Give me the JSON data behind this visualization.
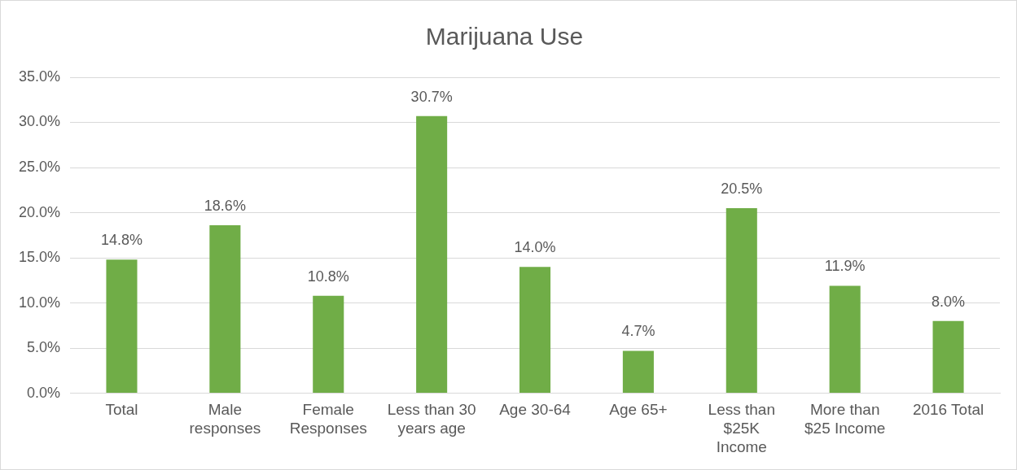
{
  "chart_data": {
    "type": "bar",
    "title": "Marijuana Use",
    "categories": [
      "Total",
      "Male\nresponses",
      "Female\nResponses",
      "Less than 30\nyears age",
      "Age 30-64",
      "Age 65+",
      "Less than\n$25K\nIncome",
      "More than\n$25 Income",
      "2016 Total"
    ],
    "values": [
      14.8,
      18.6,
      10.8,
      30.7,
      14.0,
      4.7,
      20.5,
      11.9,
      8.0
    ],
    "value_labels": [
      "14.8%",
      "18.6%",
      "10.8%",
      "30.7%",
      "14.0%",
      "4.7%",
      "20.5%",
      "11.9%",
      "8.0%"
    ],
    "color": "#70ad47",
    "ylim": [
      0,
      35
    ],
    "yticks": [
      {
        "value": 0,
        "label": "0.0%"
      },
      {
        "value": 5,
        "label": "5.0%"
      },
      {
        "value": 10,
        "label": "10.0%"
      },
      {
        "value": 15,
        "label": "15.0%"
      },
      {
        "value": 20,
        "label": "20.0%"
      },
      {
        "value": 25,
        "label": "25.0%"
      },
      {
        "value": 30,
        "label": "30.0%"
      },
      {
        "value": 35,
        "label": "35.0%"
      }
    ],
    "grid": "y",
    "legend": false
  }
}
